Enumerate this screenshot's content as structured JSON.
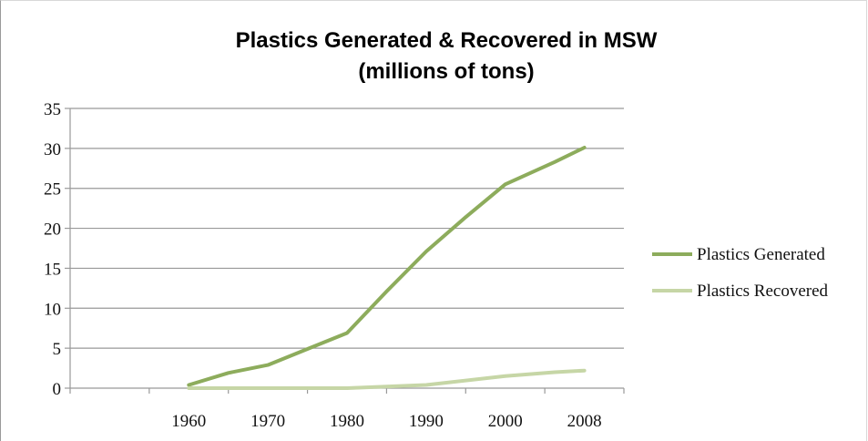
{
  "chart_data": {
    "type": "line",
    "title": "Plastics Generated & Recovered in MSW",
    "subtitle": "(millions of tons)",
    "xlabel": "",
    "ylabel": "",
    "categories": [
      "",
      "1960",
      "1970",
      "1980",
      "1990",
      "2000",
      "2008"
    ],
    "y_ticks": [
      "0",
      "5",
      "10",
      "15",
      "20",
      "25",
      "30",
      "35"
    ],
    "ylim": [
      0,
      35
    ],
    "grid": true,
    "legend_position": "right",
    "series": [
      {
        "name": "Plastics Generated",
        "color": "#8dac5c",
        "points": [
          [
            1960,
            0.4
          ],
          [
            1965,
            1.9
          ],
          [
            1970,
            2.9
          ],
          [
            1975,
            4.9
          ],
          [
            1980,
            6.9
          ],
          [
            1985,
            12.1
          ],
          [
            1990,
            17.1
          ],
          [
            1995,
            21.4
          ],
          [
            2000,
            25.5
          ],
          [
            2005,
            28.3
          ],
          [
            2008,
            30.1
          ]
        ]
      },
      {
        "name": "Plastics Recovered",
        "color": "#c6d6a6",
        "points": [
          [
            1960,
            0.0
          ],
          [
            1970,
            0.0
          ],
          [
            1980,
            0.0
          ],
          [
            1990,
            0.4
          ],
          [
            2000,
            1.5
          ],
          [
            2005,
            2.0
          ],
          [
            2008,
            2.2
          ]
        ]
      }
    ]
  }
}
